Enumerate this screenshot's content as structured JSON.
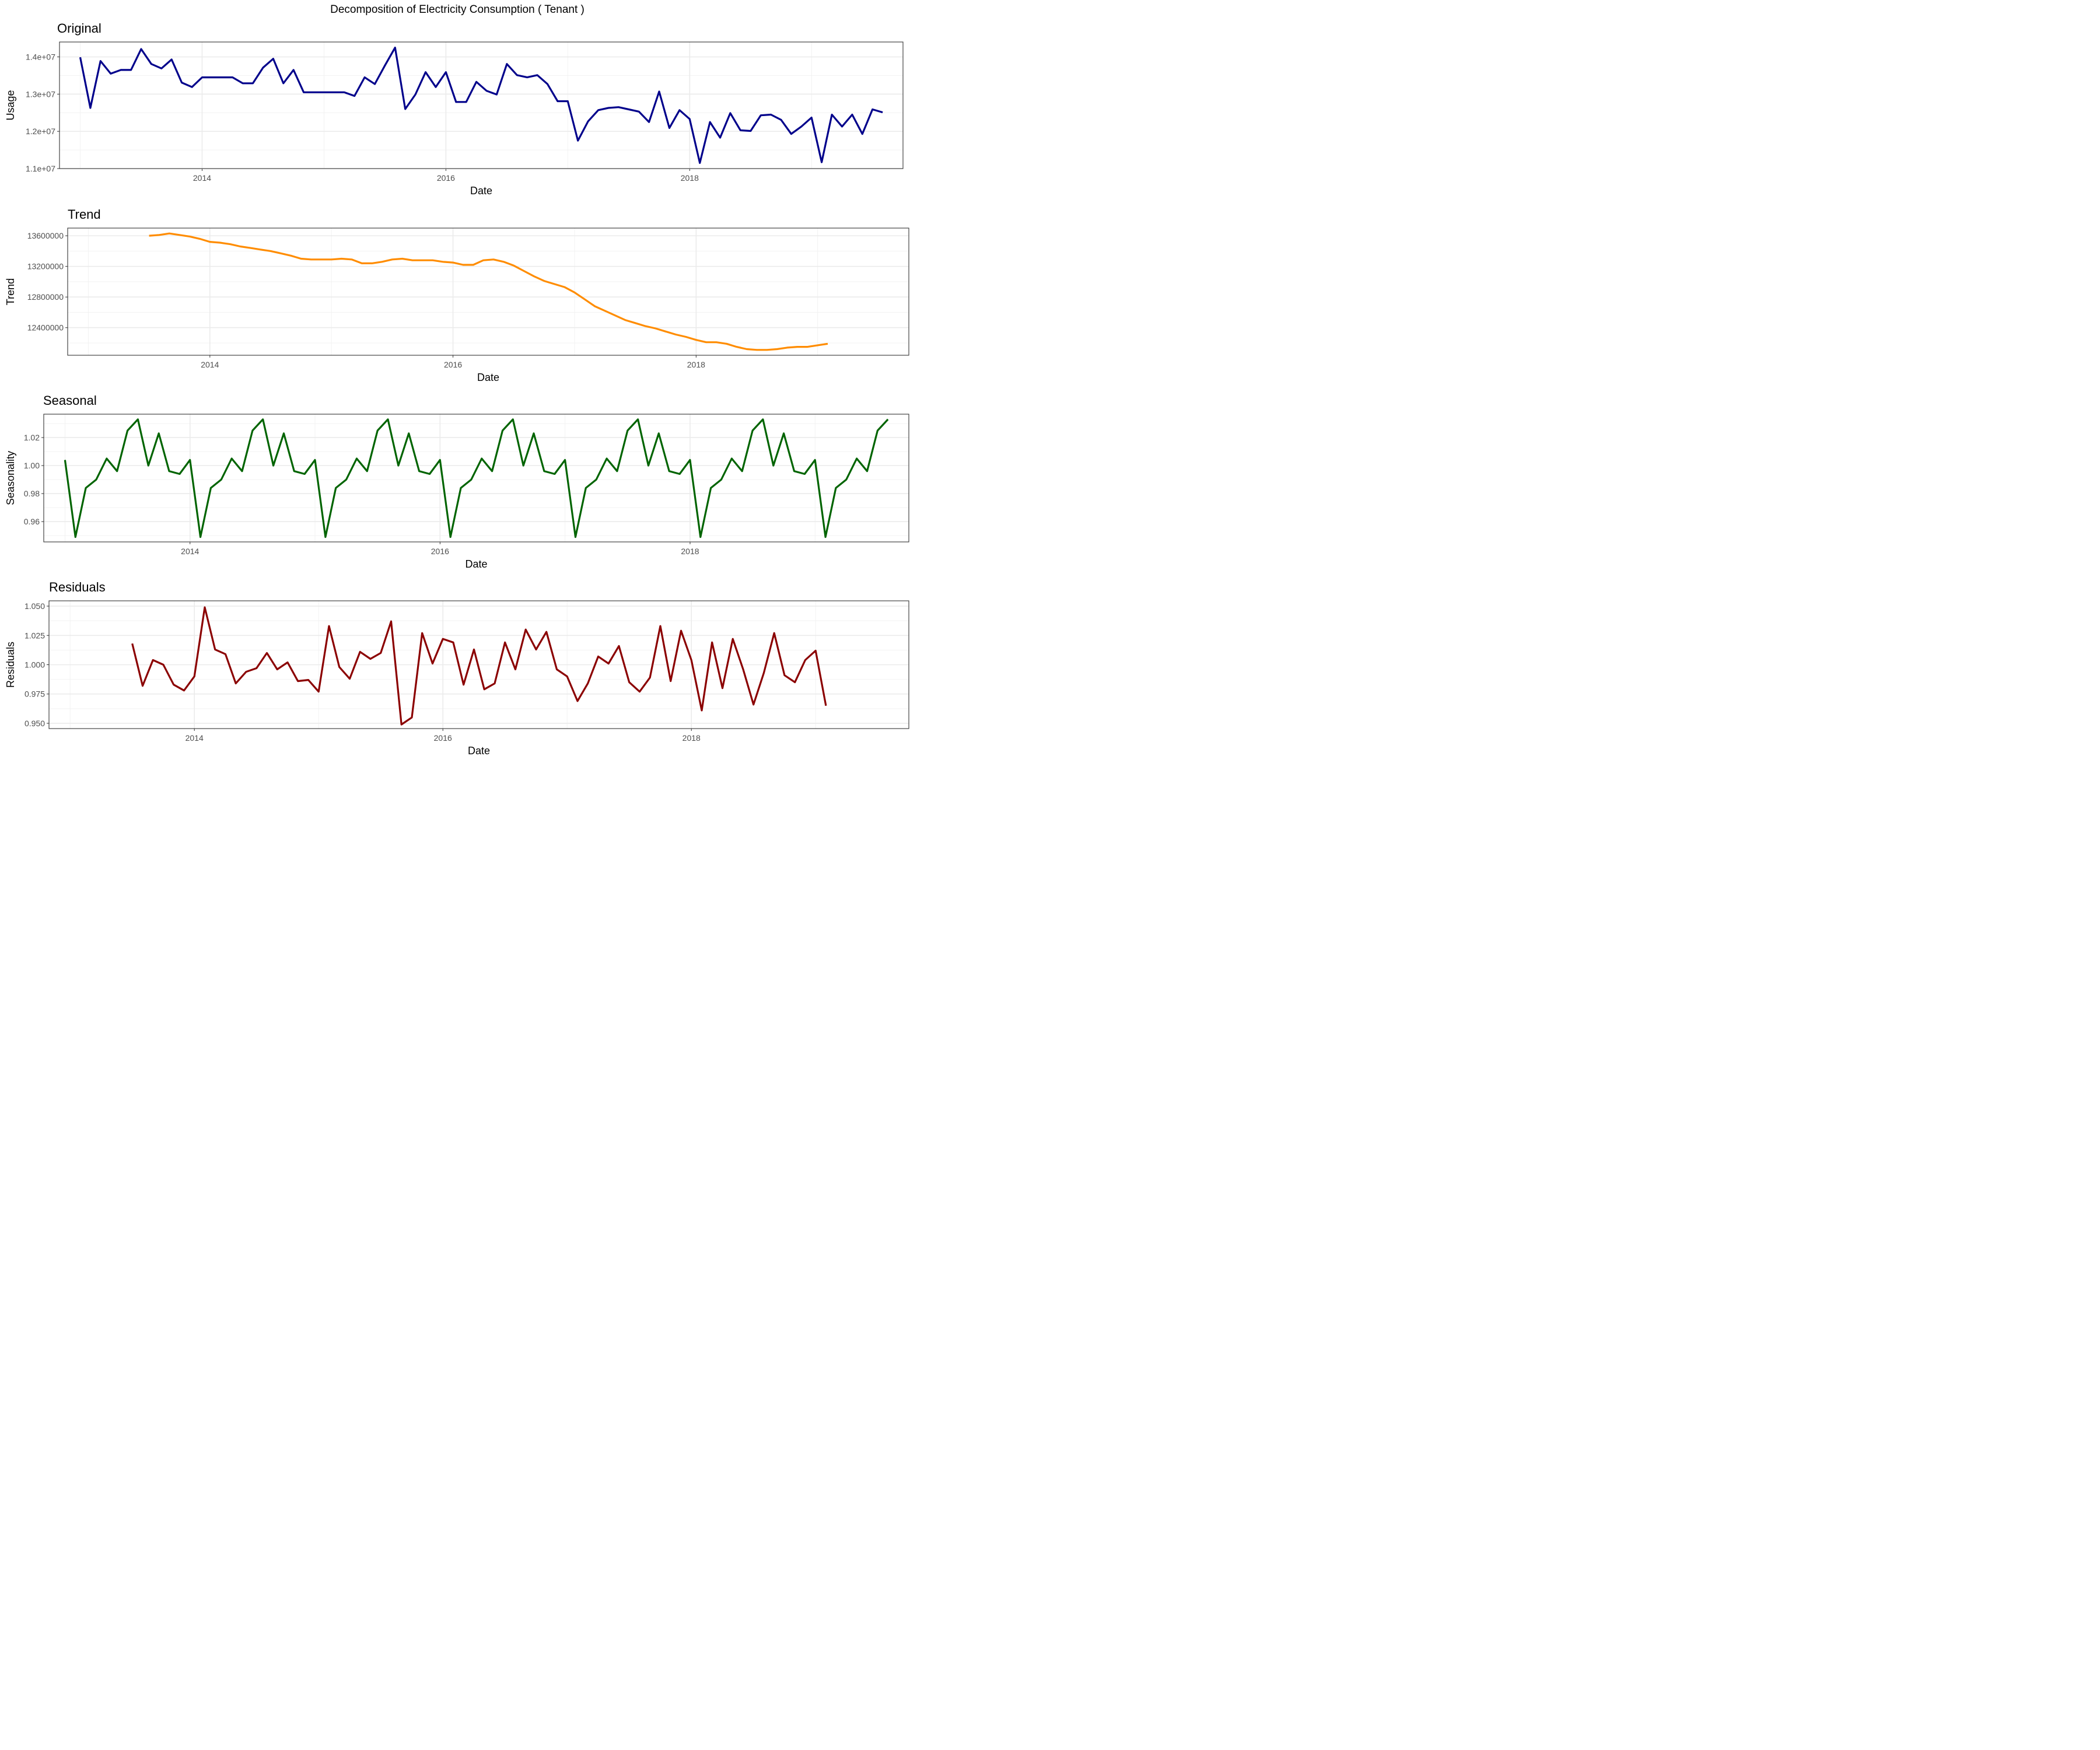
{
  "figure_title": "Decomposition of Electricity Consumption ( Tenant )",
  "chart_data": [
    {
      "type": "line",
      "title": "Original",
      "xlabel": "Date",
      "ylabel": "Usage",
      "color": "#00008b",
      "grid": true,
      "xlim": [
        2012.83,
        2019.75
      ],
      "ylim": [
        11000000,
        14400000
      ],
      "x_ticks": [
        2014,
        2016,
        2018
      ],
      "x_tick_labels": [
        "2014",
        "2016",
        "2018"
      ],
      "y_ticks": [
        11000000,
        12000000,
        13000000,
        14000000
      ],
      "y_tick_labels": [
        "1.1e+07",
        "1.2e+07",
        "1.3e+07",
        "1.4e+07"
      ],
      "x_start": 2013.0,
      "x_step": 0.08333,
      "values": [
        13990000,
        12630000,
        13890000,
        13550000,
        13650000,
        13650000,
        14210000,
        13810000,
        13690000,
        13930000,
        13310000,
        13190000,
        13450000,
        13450000,
        13450000,
        13450000,
        13290000,
        13290000,
        13710000,
        13950000,
        13290000,
        13650000,
        13050000,
        13050000,
        13050000,
        13050000,
        13050000,
        12950000,
        13450000,
        13270000,
        13770000,
        14250000,
        12600000,
        12990000,
        13590000,
        13190000,
        13590000,
        12790000,
        12790000,
        13330000,
        13090000,
        12990000,
        13810000,
        13510000,
        13450000,
        13510000,
        13270000,
        12810000,
        12810000,
        11750000,
        12270000,
        12570000,
        12630000,
        12650000,
        12590000,
        12530000,
        12250000,
        13070000,
        12090000,
        12570000,
        12330000,
        11150000,
        12250000,
        11830000,
        12490000,
        12030000,
        12010000,
        12430000,
        12450000,
        12310000,
        11930000,
        12130000,
        12370000,
        11170000,
        12450000,
        12130000,
        12450000,
        11930000,
        12590000,
        12510000
      ]
    },
    {
      "type": "line",
      "title": "Trend",
      "xlabel": "Date",
      "ylabel": "Trend",
      "color": "#ff8c00",
      "grid": true,
      "xlim": [
        2012.83,
        2019.75
      ],
      "ylim": [
        12040000,
        13700000
      ],
      "x_ticks": [
        2014,
        2016,
        2018
      ],
      "x_tick_labels": [
        "2014",
        "2016",
        "2018"
      ],
      "y_ticks": [
        12400000,
        12800000,
        13200000,
        13600000
      ],
      "y_tick_labels": [
        "12400000",
        "12800000",
        "13200000",
        "13600000"
      ],
      "x_start": 2013.5,
      "x_step": 0.08333,
      "values": [
        13600000,
        13610000,
        13630000,
        13610000,
        13590000,
        13560000,
        13520000,
        13510000,
        13490000,
        13460000,
        13440000,
        13420000,
        13400000,
        13370000,
        13340000,
        13300000,
        13290000,
        13290000,
        13290000,
        13300000,
        13290000,
        13240000,
        13240000,
        13260000,
        13290000,
        13300000,
        13280000,
        13280000,
        13280000,
        13260000,
        13250000,
        13220000,
        13220000,
        13280000,
        13290000,
        13260000,
        13210000,
        13140000,
        13070000,
        13010000,
        12970000,
        12930000,
        12860000,
        12770000,
        12680000,
        12620000,
        12560000,
        12500000,
        12460000,
        12420000,
        12390000,
        12350000,
        12310000,
        12280000,
        12240000,
        12210000,
        12210000,
        12190000,
        12150000,
        12120000,
        12110000,
        12110000,
        12120000,
        12140000,
        12150000,
        12150000,
        12170000,
        12190000
      ]
    },
    {
      "type": "line",
      "title": "Seasonal",
      "xlabel": "Date",
      "ylabel": "Seasonality",
      "color": "#006400",
      "grid": true,
      "xlim": [
        2012.83,
        2019.75
      ],
      "ylim": [
        0.9455,
        1.0367
      ],
      "x_ticks": [
        2014,
        2016,
        2018
      ],
      "x_tick_labels": [
        "2014",
        "2016",
        "2018"
      ],
      "y_ticks": [
        0.96,
        0.98,
        1.0,
        1.02
      ],
      "y_tick_labels": [
        "0.96",
        "0.98",
        "1.00",
        "1.02"
      ],
      "x_start": 2013.0,
      "x_step": 0.08333,
      "seasonal_cycle": [
        1.004,
        0.949,
        0.984,
        0.99,
        1.005,
        0.996,
        1.025,
        1.033,
        1.0,
        1.023,
        0.996,
        0.994
      ],
      "values": [
        1.004,
        0.949,
        0.984,
        0.99,
        1.005,
        0.996,
        1.025,
        1.033,
        1.0,
        1.023,
        0.996,
        0.994,
        1.004,
        0.949,
        0.984,
        0.99,
        1.005,
        0.996,
        1.025,
        1.033,
        1.0,
        1.023,
        0.996,
        0.994,
        1.004,
        0.949,
        0.984,
        0.99,
        1.005,
        0.996,
        1.025,
        1.033,
        1.0,
        1.023,
        0.996,
        0.994,
        1.004,
        0.949,
        0.984,
        0.99,
        1.005,
        0.996,
        1.025,
        1.033,
        1.0,
        1.023,
        0.996,
        0.994,
        1.004,
        0.949,
        0.984,
        0.99,
        1.005,
        0.996,
        1.025,
        1.033,
        1.0,
        1.023,
        0.996,
        0.994,
        1.004,
        0.949,
        0.984,
        0.99,
        1.005,
        0.996,
        1.025,
        1.033,
        1.0,
        1.023,
        0.996,
        0.994,
        1.004,
        0.949,
        0.984,
        0.99,
        1.005,
        0.996,
        1.025,
        1.033
      ]
    },
    {
      "type": "line",
      "title": "Residuals",
      "xlabel": "Date",
      "ylabel": "Residuals",
      "color": "#8b0000",
      "grid": true,
      "xlim": [
        2012.83,
        2019.75
      ],
      "ylim": [
        0.9455,
        1.0545
      ],
      "x_ticks": [
        2014,
        2016,
        2018
      ],
      "x_tick_labels": [
        "2014",
        "2016",
        "2018"
      ],
      "y_ticks": [
        0.95,
        0.975,
        1.0,
        1.025,
        1.05
      ],
      "y_tick_labels": [
        "0.950",
        "0.975",
        "1.000",
        "1.025",
        "1.050"
      ],
      "x_start": 2013.5,
      "x_step": 0.08333,
      "values": [
        1.018,
        0.982,
        1.004,
        1.0,
        0.983,
        0.978,
        0.99,
        1.049,
        1.013,
        1.009,
        0.984,
        0.994,
        0.997,
        1.01,
        0.996,
        1.002,
        0.986,
        0.987,
        0.977,
        1.033,
        0.998,
        0.988,
        1.011,
        1.005,
        1.01,
        1.037,
        0.949,
        0.955,
        1.027,
        1.001,
        1.022,
        1.019,
        0.983,
        1.013,
        0.979,
        0.984,
        1.019,
        0.996,
        1.03,
        1.013,
        1.028,
        0.996,
        0.99,
        0.969,
        0.984,
        1.007,
        1.001,
        1.016,
        0.985,
        0.977,
        0.989,
        1.033,
        0.986,
        1.029,
        1.004,
        0.961,
        1.019,
        0.98,
        1.022,
        0.996,
        0.966,
        0.993,
        1.027,
        0.991,
        0.985,
        1.004,
        1.012,
        0.965
      ]
    }
  ]
}
